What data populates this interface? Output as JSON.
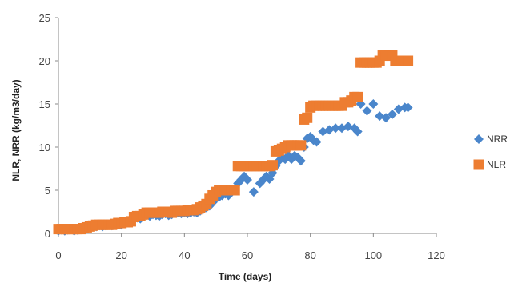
{
  "chart_data": {
    "type": "scatter",
    "title": "",
    "xlabel": "Time (days)",
    "ylabel": "NLR, NRR (kg/m3/day)",
    "xlim": [
      0,
      120
    ],
    "ylim": [
      0,
      25
    ],
    "xticks": [
      "0",
      "20",
      "40",
      "60",
      "80",
      "100",
      "120"
    ],
    "yticks": [
      "0",
      "5",
      "10",
      "15",
      "20",
      "25"
    ],
    "grid": false,
    "legend": "right",
    "series": [
      {
        "name": "NRR",
        "marker": "diamond",
        "color": "#4A86CB",
        "x": [
          0,
          1,
          2,
          3,
          4,
          5,
          6,
          7,
          8,
          10,
          11,
          12,
          13,
          14,
          15,
          16,
          17,
          18,
          19,
          20,
          21,
          22,
          23,
          24,
          25,
          26,
          27,
          28,
          29,
          30,
          31,
          32,
          33,
          34,
          35,
          36,
          37,
          38,
          39,
          40,
          41,
          42,
          43,
          44,
          45,
          46,
          47,
          48,
          49,
          50,
          51,
          52,
          53,
          54,
          55,
          56,
          57,
          58,
          59,
          60,
          62,
          64,
          65,
          66,
          67,
          68,
          69,
          70,
          71,
          72,
          73,
          74,
          75,
          76,
          77,
          78,
          79,
          80,
          81,
          82,
          84,
          86,
          88,
          90,
          92,
          94,
          95,
          96,
          98,
          100,
          102,
          104,
          106,
          108,
          110,
          111
        ],
        "y": [
          0.3,
          0.4,
          0.3,
          0.4,
          0.5,
          0.3,
          0.4,
          0.5,
          0.6,
          0.7,
          0.8,
          0.8,
          0.9,
          0.8,
          0.9,
          1.0,
          0.9,
          1.0,
          1.1,
          1.0,
          1.2,
          1.4,
          1.3,
          1.6,
          1.8,
          1.7,
          2.0,
          2.1,
          2.0,
          2.2,
          2.1,
          2.0,
          2.2,
          2.3,
          2.1,
          2.2,
          2.3,
          2.4,
          2.3,
          2.4,
          2.3,
          2.4,
          2.5,
          2.4,
          2.6,
          2.8,
          3.0,
          3.2,
          3.6,
          4.0,
          4.2,
          4.4,
          4.6,
          4.4,
          4.8,
          5.0,
          5.8,
          6.2,
          6.6,
          6.2,
          4.8,
          5.8,
          6.2,
          6.6,
          6.3,
          7.0,
          7.8,
          8.4,
          8.8,
          8.6,
          9.0,
          8.6,
          9.0,
          8.8,
          8.4,
          10.0,
          11.0,
          11.2,
          10.8,
          10.6,
          11.8,
          12.0,
          12.2,
          12.2,
          12.4,
          12.2,
          11.8,
          15.0,
          14.2,
          15.0,
          13.6,
          13.4,
          13.8,
          14.4,
          14.6,
          14.6
        ]
      },
      {
        "name": "NLR",
        "marker": "square",
        "color": "#ED7D31",
        "x": [
          0,
          1,
          2,
          3,
          4,
          5,
          6,
          7,
          8,
          9,
          10,
          11,
          12,
          13,
          14,
          15,
          16,
          17,
          18,
          19,
          20,
          21,
          22,
          23,
          24,
          25,
          26,
          27,
          28,
          29,
          30,
          31,
          32,
          33,
          34,
          35,
          36,
          37,
          38,
          39,
          40,
          41,
          42,
          43,
          44,
          45,
          46,
          47,
          48,
          49,
          50,
          51,
          52,
          53,
          54,
          55,
          56,
          57,
          58,
          59,
          60,
          61,
          62,
          63,
          64,
          65,
          66,
          67,
          68,
          69,
          70,
          71,
          72,
          73,
          74,
          75,
          76,
          77,
          78,
          79,
          80,
          81,
          82,
          83,
          84,
          85,
          86,
          87,
          88,
          89,
          90,
          91,
          92,
          93,
          94,
          95,
          96,
          97,
          98,
          99,
          100,
          101,
          102,
          103,
          104,
          105,
          106,
          107,
          108,
          109,
          110,
          111
        ],
        "y": [
          0.5,
          0.5,
          0.5,
          0.5,
          0.5,
          0.5,
          0.5,
          0.5,
          0.6,
          0.7,
          0.8,
          0.9,
          1.0,
          1.0,
          1.0,
          1.0,
          1.0,
          1.0,
          1.1,
          1.2,
          1.2,
          1.3,
          1.3,
          1.4,
          1.9,
          2.0,
          2.0,
          2.2,
          2.4,
          2.4,
          2.4,
          2.4,
          2.4,
          2.5,
          2.5,
          2.5,
          2.4,
          2.6,
          2.6,
          2.6,
          2.6,
          2.7,
          2.7,
          2.7,
          2.8,
          3.0,
          3.2,
          3.4,
          4.0,
          4.4,
          4.8,
          5.0,
          5.0,
          5.0,
          5.0,
          5.0,
          5.0,
          7.8,
          7.8,
          7.8,
          7.8,
          7.8,
          7.8,
          7.8,
          7.8,
          7.8,
          7.8,
          7.8,
          7.9,
          9.5,
          9.6,
          9.8,
          10.0,
          10.2,
          10.2,
          10.2,
          10.2,
          10.2,
          13.2,
          13.4,
          14.6,
          14.8,
          14.8,
          14.8,
          14.8,
          14.8,
          14.8,
          14.8,
          14.8,
          14.8,
          14.8,
          15.2,
          15.2,
          15.4,
          15.8,
          15.8,
          19.8,
          19.8,
          19.8,
          19.8,
          19.8,
          19.8,
          20.0,
          20.6,
          20.6,
          20.6,
          20.6,
          20.0,
          20.0,
          20.0,
          20.0,
          20.0
        ]
      }
    ]
  }
}
